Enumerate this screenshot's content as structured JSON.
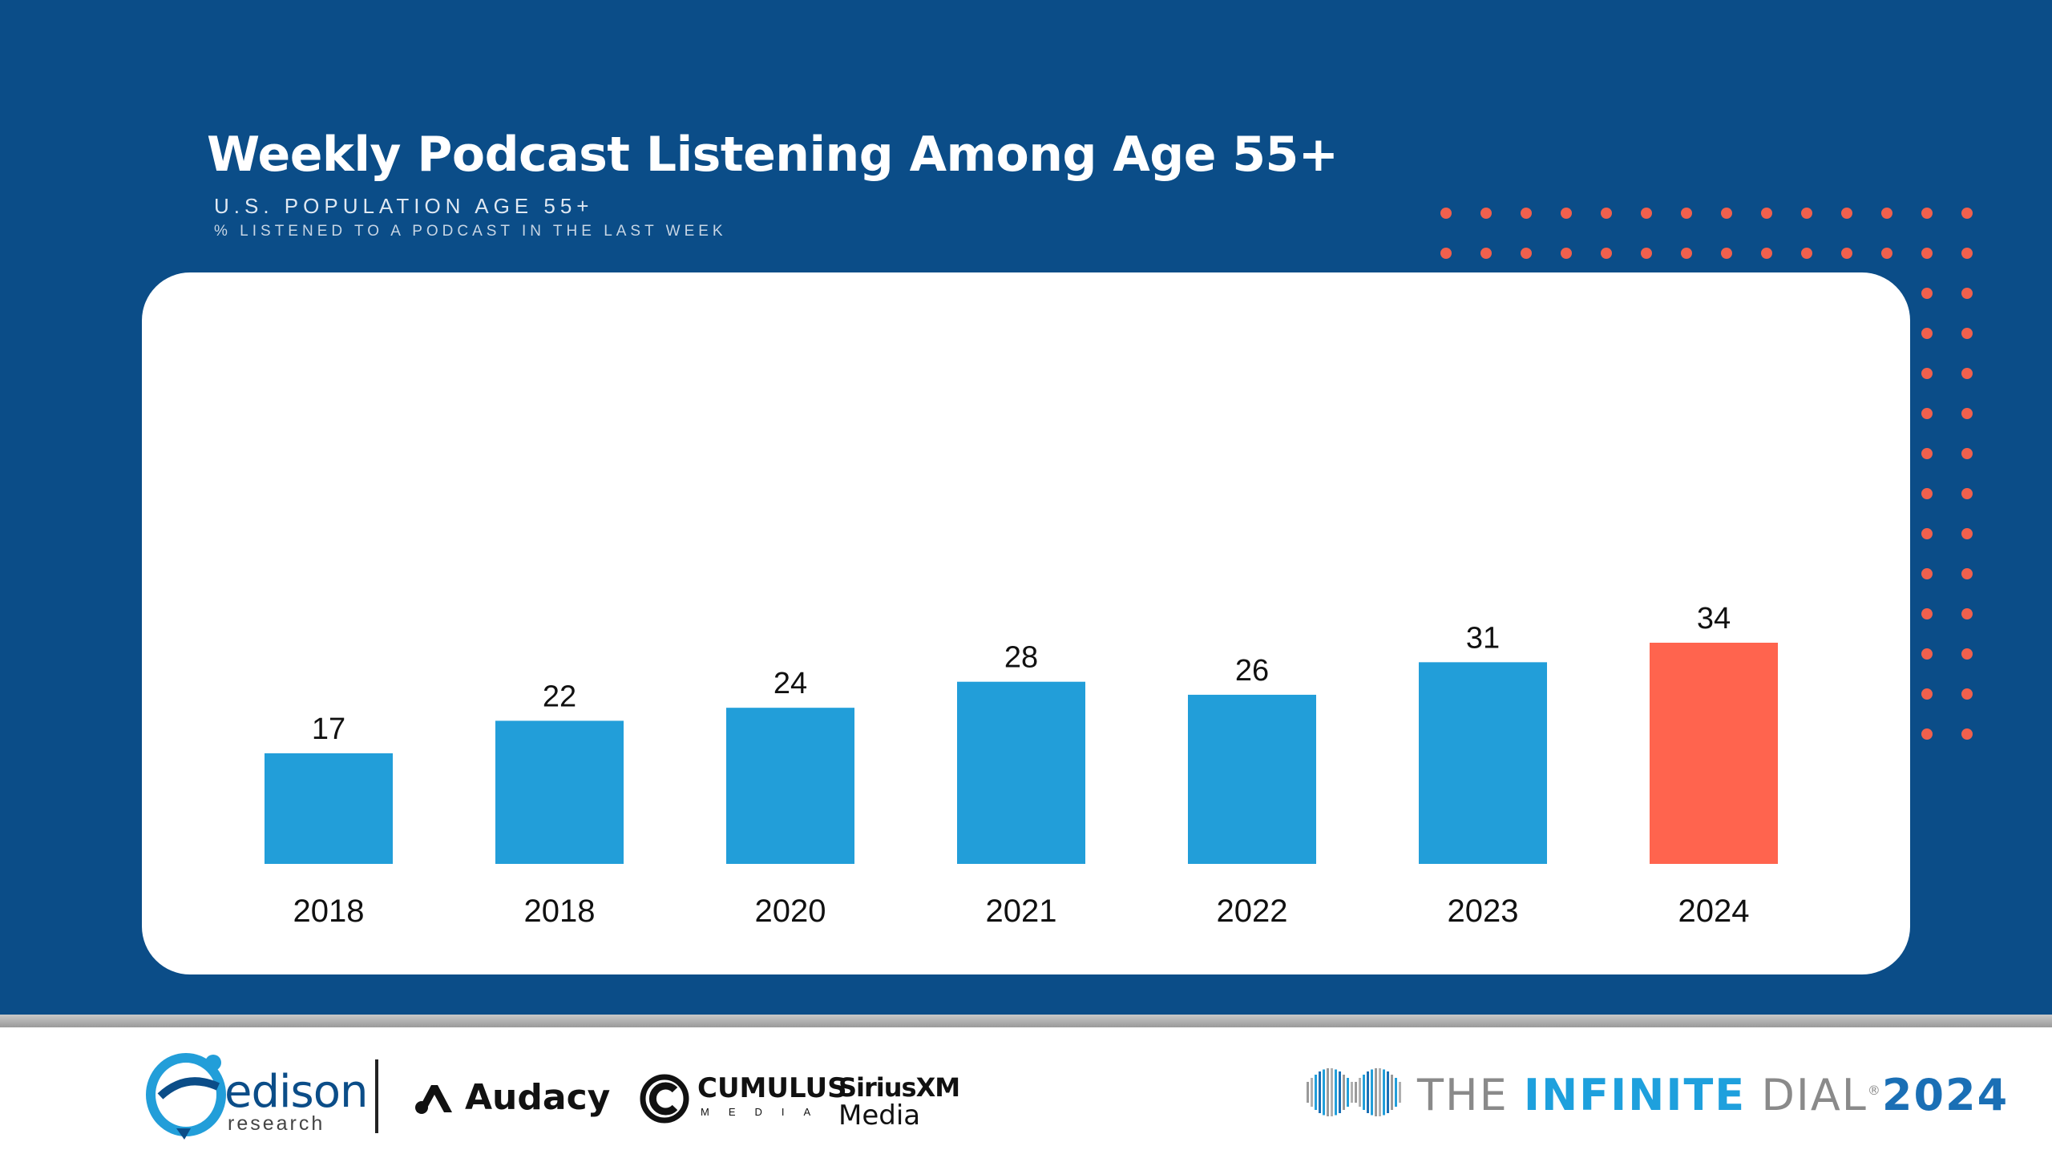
{
  "slide": {
    "title": "Weekly Podcast Listening Among Age 55+",
    "subtitle": "U.S. POPULATION AGE 55+",
    "question": "% LISTENED TO A PODCAST IN THE LAST WEEK",
    "background_color": "#0b4d88",
    "accent_dot_color": "#f0604d"
  },
  "chart_data": {
    "type": "bar",
    "categories": [
      "2018",
      "2018",
      "2020",
      "2021",
      "2022",
      "2023",
      "2024"
    ],
    "values": [
      17,
      22,
      24,
      28,
      26,
      31,
      34
    ],
    "value_labels": [
      "17",
      "22",
      "24",
      "28",
      "26",
      "31",
      "34"
    ],
    "highlight_index": 6,
    "bar_color": "#229ed9",
    "highlight_color": "#ff644e",
    "ylim": [
      0,
      34
    ],
    "grid": false,
    "legend": "none",
    "title": "",
    "xlabel": "",
    "ylabel": ""
  },
  "footer": {
    "edison": {
      "name": "edison",
      "sub": "research"
    },
    "audacy": "Audacy",
    "cumulus": {
      "name": "CUMULUS",
      "sub": "MEDIA"
    },
    "siriusxm": {
      "name": "SiriusXM",
      "sub": "Media"
    },
    "infinite_dial": {
      "the": "THE",
      "name": "INFINITE",
      "dial": "DIAL",
      "reg": "®",
      "year": "2024"
    }
  }
}
